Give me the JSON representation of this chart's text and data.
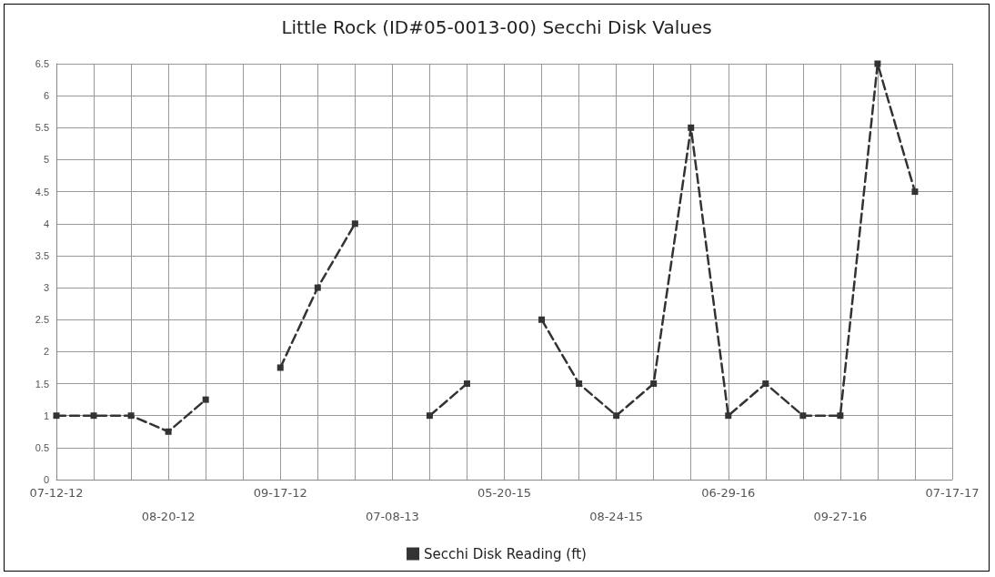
{
  "chart_data": {
    "type": "line",
    "title": "Little Rock (ID#05-0013-00) Secchi Disk Values",
    "categories": [
      "07-12-12",
      null,
      null,
      "08-20-12",
      null,
      null,
      "09-17-12",
      null,
      null,
      "07-08-13",
      null,
      null,
      "05-20-15",
      null,
      null,
      "08-24-15",
      null,
      null,
      "06-29-16",
      null,
      null,
      "09-27-16",
      null,
      null,
      "07-17-17"
    ],
    "series": [
      {
        "name": "Secchi Disk Reading (ft)",
        "color": "#333333",
        "values": [
          1,
          1,
          1,
          0.75,
          1.25,
          null,
          1.75,
          3,
          4,
          null,
          1,
          1.5,
          null,
          2.5,
          1.5,
          1,
          1.5,
          5.5,
          1,
          1.5,
          1,
          1,
          6.5,
          4.5,
          null
        ]
      }
    ],
    "ylim": [
      0,
      6.5
    ],
    "yticks": [
      0,
      0.5,
      1,
      1.5,
      2,
      2.5,
      3,
      3.5,
      4,
      4.5,
      5,
      5.5,
      6,
      6.5
    ],
    "grid": true,
    "legend": "bottom",
    "marker": "square",
    "line_style": "dashed"
  }
}
